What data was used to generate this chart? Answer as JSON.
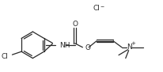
{
  "bg_color": "#ffffff",
  "line_color": "#2a2a2a",
  "text_color": "#2a2a2a",
  "figsize": [
    2.06,
    0.91
  ],
  "dpi": 100,
  "font_size": 6.5,
  "font_size_small": 4.5,
  "cl_ion_label": "Cl",
  "cl_ion_charge": "⁻",
  "cl_sub_label": "Cl",
  "nh_label": "NH",
  "o_carbonyl_label": "O",
  "o_ester_label": "O",
  "n_label": "N",
  "n_charge": "+",
  "me_label": "—"
}
